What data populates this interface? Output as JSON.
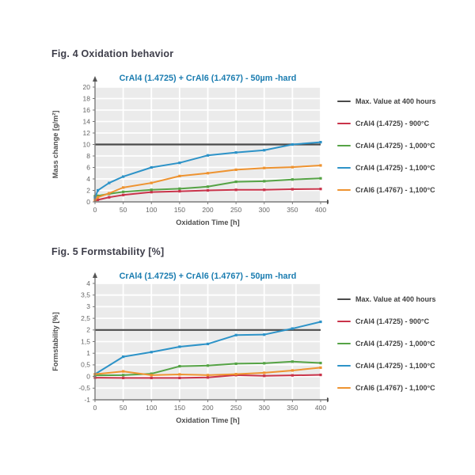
{
  "figures": [
    {
      "heading": "Fig. 4 Oxidation behavior"
    },
    {
      "heading": "Fig. 5 Formstability [%]"
    }
  ],
  "colors": {
    "title_blue": "#1a7cb0",
    "heading_text": "#3d3d49",
    "plot_background": "#ebebeb",
    "gridline": "#ffffff",
    "axis": "#7a7a7a",
    "tick_label": "#666666",
    "axis_title": "#4d4d4d",
    "max_line_black": "#4a4a4a",
    "series_red": "#c9334a",
    "series_green": "#55a345",
    "series_blue": "#2d93c8",
    "series_orange": "#ee9330"
  },
  "chart_data": [
    {
      "type": "line",
      "name": "oxidation-behavior-chart",
      "title": "CrAl4 (1.4725) + CrAl6 (1.4767) - 50µm -hard",
      "xlabel": "Oxidation Time [h]",
      "ylabel": "Mass change [g/m²]",
      "xlim": [
        0,
        400
      ],
      "ylim": [
        0,
        20
      ],
      "xticks": [
        0,
        50,
        100,
        150,
        200,
        250,
        300,
        350,
        400
      ],
      "xtick_labels": [
        "0",
        "50",
        "100",
        "150",
        "200",
        "250",
        "300",
        "350",
        "400"
      ],
      "yticks": [
        0,
        2,
        4,
        6,
        8,
        10,
        12,
        14,
        16,
        18,
        20
      ],
      "ytick_labels": [
        "0",
        "2",
        "4",
        "6",
        "8",
        "10",
        "12",
        "14",
        "16",
        "18",
        "20"
      ],
      "grid": true,
      "legend_position": "right",
      "series": [
        {
          "name": "Max. Value at 400 hours",
          "color": "#4a4a4a",
          "hline": 10
        },
        {
          "name": "CrAl4 (1.4725) - 900°C",
          "color": "#c9334a",
          "x": [
            0,
            5,
            25,
            50,
            100,
            150,
            200,
            250,
            300,
            350,
            400
          ],
          "y": [
            0.2,
            0.35,
            0.8,
            1.2,
            1.7,
            1.85,
            2.0,
            2.1,
            2.1,
            2.2,
            2.25
          ]
        },
        {
          "name": "CrAl4 (1.4725) - 1,000°C",
          "color": "#55a345",
          "x": [
            0,
            5,
            25,
            50,
            100,
            150,
            200,
            250,
            300,
            350,
            400
          ],
          "y": [
            1.0,
            1.05,
            1.4,
            1.75,
            2.1,
            2.3,
            2.65,
            3.5,
            3.6,
            3.9,
            4.1
          ]
        },
        {
          "name": "CrAl4 (1.4725) - 1,100°C",
          "color": "#2d93c8",
          "x": [
            0,
            5,
            25,
            50,
            100,
            150,
            200,
            250,
            300,
            350,
            400
          ],
          "y": [
            0.7,
            2.0,
            3.3,
            4.4,
            6.0,
            6.8,
            8.1,
            8.6,
            9.0,
            10.0,
            10.4
          ]
        },
        {
          "name": "CrAl6 (1.4767) - 1,100°C",
          "color": "#ee9330",
          "x": [
            0,
            5,
            25,
            50,
            100,
            150,
            200,
            250,
            300,
            350,
            400
          ],
          "y": [
            0.3,
            0.8,
            1.5,
            2.5,
            3.3,
            4.5,
            5.0,
            5.6,
            5.9,
            6.05,
            6.35
          ]
        }
      ]
    },
    {
      "type": "line",
      "name": "formstability-chart",
      "title": "CrAl4 (1.4725) + CrAl6 (1.4767) - 50µm -hard",
      "xlabel": "Oxidation Time [h]",
      "ylabel": "Formstability [%]",
      "xlim": [
        0,
        400
      ],
      "ylim": [
        -1,
        4
      ],
      "xticks": [
        0,
        50,
        100,
        150,
        200,
        250,
        300,
        350,
        400
      ],
      "xtick_labels": [
        "0",
        "50",
        "100",
        "150",
        "200",
        "250",
        "300",
        "350",
        "400"
      ],
      "yticks": [
        -1,
        -0.5,
        0,
        0.5,
        1,
        1.5,
        2,
        2.5,
        3,
        3.5,
        4
      ],
      "ytick_labels": [
        "-1",
        "-0,5",
        "0",
        "0,5",
        "1",
        "1,5",
        "2",
        "2,5",
        "3",
        "3,5",
        "4"
      ],
      "grid": true,
      "legend_position": "right",
      "series": [
        {
          "name": "Max. Value at 400 hours",
          "color": "#4a4a4a",
          "hline": 2
        },
        {
          "name": "CrAl4 (1.4725) - 900°C",
          "color": "#c9334a",
          "x": [
            0,
            50,
            100,
            150,
            200,
            250,
            300,
            350,
            400
          ],
          "y": [
            -0.05,
            -0.06,
            -0.06,
            -0.06,
            -0.04,
            0.06,
            0.03,
            0.05,
            0.07
          ]
        },
        {
          "name": "CrAl4 (1.4725) - 1,000°C",
          "color": "#55a345",
          "x": [
            0,
            50,
            100,
            150,
            200,
            250,
            300,
            350,
            400
          ],
          "y": [
            0.05,
            0.06,
            0.12,
            0.44,
            0.47,
            0.55,
            0.57,
            0.64,
            0.58
          ]
        },
        {
          "name": "CrAl4 (1.4725) - 1,100°C",
          "color": "#2d93c8",
          "x": [
            0,
            50,
            100,
            150,
            200,
            250,
            300,
            350,
            400
          ],
          "y": [
            0.1,
            0.85,
            1.05,
            1.28,
            1.4,
            1.78,
            1.8,
            2.06,
            2.35
          ]
        },
        {
          "name": "CrAl6 (1.4767) - 1,100°C",
          "color": "#ee9330",
          "x": [
            0,
            50,
            100,
            150,
            200,
            250,
            300,
            350,
            400
          ],
          "y": [
            0.1,
            0.22,
            0.06,
            0.09,
            0.06,
            0.1,
            0.16,
            0.26,
            0.38
          ]
        }
      ]
    }
  ]
}
